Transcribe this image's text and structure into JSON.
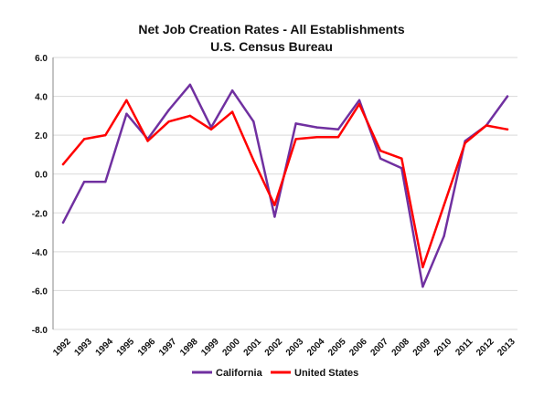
{
  "chart_data": {
    "type": "line",
    "title": "Net Job Creation Rates - All Establishments",
    "subtitle": "U.S. Census Bureau",
    "xlabel": "",
    "ylabel": "",
    "ylim": [
      -8,
      6
    ],
    "yticks": [
      6,
      4,
      2,
      0,
      -2,
      -4,
      -6,
      -8
    ],
    "ytick_labels": [
      "6.0",
      "4.0",
      "2.0",
      "0.0",
      "-2.0",
      "-4.0",
      "-6.0",
      "-8.0"
    ],
    "grid": true,
    "legend_position": "bottom",
    "categories": [
      "1992",
      "1993",
      "1994",
      "1995",
      "1996",
      "1997",
      "1998",
      "1999",
      "2000",
      "2001",
      "2002",
      "2003",
      "2004",
      "2005",
      "2006",
      "2007",
      "2008",
      "2009",
      "2010",
      "2011",
      "2012",
      "2013"
    ],
    "series": [
      {
        "name": "California",
        "color": "#7030a0",
        "values": [
          -2.5,
          -0.4,
          -0.4,
          3.1,
          1.8,
          3.3,
          4.6,
          2.4,
          4.3,
          2.7,
          -2.2,
          2.6,
          2.4,
          2.3,
          3.8,
          0.8,
          0.3,
          -5.8,
          -3.2,
          1.7,
          2.5,
          4.0
        ]
      },
      {
        "name": "United States",
        "color": "#ff0000",
        "values": [
          0.5,
          1.8,
          2.0,
          3.8,
          1.7,
          2.7,
          3.0,
          2.3,
          3.2,
          0.7,
          -1.6,
          1.8,
          1.9,
          1.9,
          3.6,
          1.2,
          0.8,
          -4.8,
          -1.6,
          1.6,
          2.5,
          2.3
        ]
      }
    ]
  }
}
